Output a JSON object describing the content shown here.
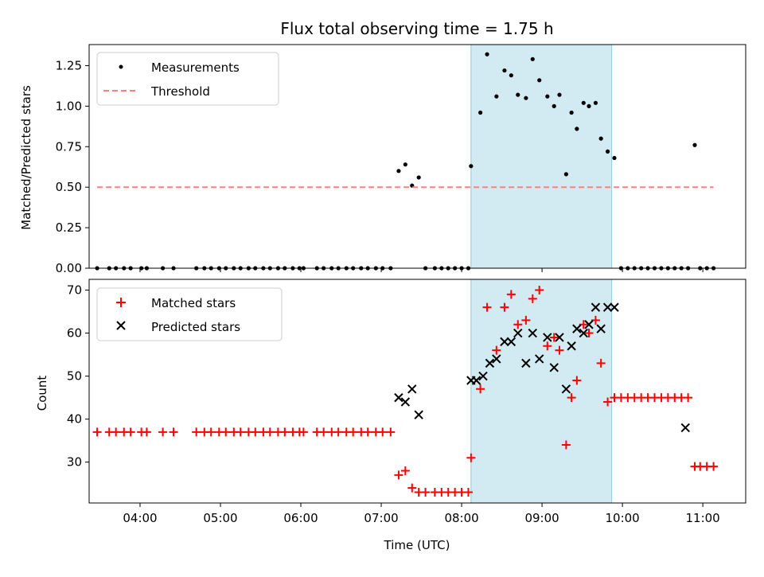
{
  "chart_data": [
    {
      "type": "scatter",
      "title": "Flux total observing time = 1.75 h",
      "xlabel": "",
      "ylabel": "Matched/Predicted stars",
      "xlim": [
        "03:22",
        "11:32"
      ],
      "ylim": [
        0,
        1.38
      ],
      "yticks": [
        "0.00",
        "0.25",
        "0.50",
        "0.75",
        "1.00",
        "1.25"
      ],
      "xticks": [
        "04:00",
        "05:00",
        "06:00",
        "07:00",
        "08:00",
        "09:00",
        "10:00",
        "11:00"
      ],
      "highlight_span": [
        "08:07",
        "09:52"
      ],
      "legend": {
        "position": "top-left",
        "entries": [
          "Measurements",
          "Threshold"
        ]
      },
      "series": [
        {
          "name": "Measurements",
          "marker": "dot",
          "color": "#000000",
          "x": [
            "03:28",
            "03:37",
            "03:42",
            "03:48",
            "03:53",
            "04:01",
            "04:05",
            "04:17",
            "04:25",
            "04:42",
            "04:48",
            "04:53",
            "04:59",
            "05:04",
            "05:10",
            "05:15",
            "05:21",
            "05:26",
            "05:32",
            "05:37",
            "05:43",
            "05:48",
            "05:54",
            "05:59",
            "06:02",
            "06:12",
            "06:17",
            "06:23",
            "06:28",
            "06:34",
            "06:39",
            "06:45",
            "06:50",
            "06:56",
            "07:01",
            "07:07",
            "07:13",
            "07:18",
            "07:23",
            "07:28",
            "07:33",
            "07:40",
            "07:45",
            "07:50",
            "07:55",
            "08:00",
            "08:05",
            "08:07",
            "08:14",
            "08:19",
            "08:26",
            "08:32",
            "08:37",
            "08:42",
            "08:48",
            "08:53",
            "08:58",
            "09:04",
            "09:09",
            "09:13",
            "09:18",
            "09:22",
            "09:26",
            "09:31",
            "09:35",
            "09:40",
            "09:44",
            "09:49",
            "09:54",
            "09:59",
            "10:04",
            "10:09",
            "10:14",
            "10:19",
            "10:24",
            "10:29",
            "10:34",
            "10:39",
            "10:44",
            "10:49",
            "10:54",
            "10:58",
            "11:03",
            "11:08"
          ],
          "y": [
            0,
            0,
            0,
            0,
            0,
            0,
            0,
            0,
            0,
            0,
            0,
            0,
            0,
            0,
            0,
            0,
            0,
            0,
            0,
            0,
            0,
            0,
            0,
            0,
            0,
            0,
            0,
            0,
            0,
            0,
            0,
            0,
            0,
            0,
            0,
            0,
            0.6,
            0.64,
            0.51,
            0.56,
            0,
            0,
            0,
            0,
            0,
            0,
            0,
            0.63,
            0.96,
            1.32,
            1.06,
            1.22,
            1.19,
            1.07,
            1.05,
            1.29,
            1.16,
            1.06,
            1.0,
            1.07,
            0.58,
            0.96,
            0.86,
            1.02,
            1.0,
            1.02,
            0.8,
            0.72,
            0.68,
            0,
            0,
            0,
            0,
            0,
            0,
            0,
            0,
            0,
            0,
            0,
            0.76,
            0,
            0,
            0
          ]
        },
        {
          "name": "Threshold",
          "style": "dashed",
          "color": "#ff7f7f",
          "x": [
            "03:28",
            "11:08"
          ],
          "y": [
            0.5,
            0.5
          ]
        }
      ]
    },
    {
      "type": "scatter",
      "title": "",
      "xlabel": "Time (UTC)",
      "ylabel": "Count",
      "xlim": [
        "03:22",
        "11:32"
      ],
      "ylim": [
        20.5,
        72.5
      ],
      "yticks": [
        "30",
        "40",
        "50",
        "60",
        "70"
      ],
      "xticks": [
        "04:00",
        "05:00",
        "06:00",
        "07:00",
        "08:00",
        "09:00",
        "10:00",
        "11:00"
      ],
      "highlight_span": [
        "08:07",
        "09:52"
      ],
      "legend": {
        "position": "top-left",
        "entries": [
          "Matched stars",
          "Predicted stars"
        ]
      },
      "series": [
        {
          "name": "Matched stars",
          "marker": "plus",
          "color": "#ff0000",
          "x": [
            "03:28",
            "03:37",
            "03:42",
            "03:48",
            "03:53",
            "04:01",
            "04:05",
            "04:17",
            "04:25",
            "04:42",
            "04:48",
            "04:53",
            "04:59",
            "05:04",
            "05:10",
            "05:15",
            "05:21",
            "05:26",
            "05:32",
            "05:37",
            "05:43",
            "05:48",
            "05:54",
            "05:59",
            "06:02",
            "06:12",
            "06:17",
            "06:23",
            "06:28",
            "06:34",
            "06:39",
            "06:45",
            "06:50",
            "06:56",
            "07:01",
            "07:07",
            "07:13",
            "07:18",
            "07:23",
            "07:28",
            "07:33",
            "07:40",
            "07:45",
            "07:50",
            "07:55",
            "08:00",
            "08:05",
            "08:07",
            "08:14",
            "08:19",
            "08:26",
            "08:32",
            "08:37",
            "08:42",
            "08:48",
            "08:53",
            "08:58",
            "09:04",
            "09:09",
            "09:13",
            "09:18",
            "09:22",
            "09:26",
            "09:31",
            "09:35",
            "09:40",
            "09:44",
            "09:49",
            "09:54",
            "09:59",
            "10:04",
            "10:09",
            "10:14",
            "10:19",
            "10:24",
            "10:29",
            "10:34",
            "10:39",
            "10:44",
            "10:49",
            "10:54",
            "10:58",
            "11:03",
            "11:08"
          ],
          "y": [
            37,
            37,
            37,
            37,
            37,
            37,
            37,
            37,
            37,
            37,
            37,
            37,
            37,
            37,
            37,
            37,
            37,
            37,
            37,
            37,
            37,
            37,
            37,
            37,
            37,
            37,
            37,
            37,
            37,
            37,
            37,
            37,
            37,
            37,
            37,
            37,
            27,
            28,
            24,
            23,
            23,
            23,
            23,
            23,
            23,
            23,
            23,
            31,
            47,
            66,
            56,
            66,
            69,
            62,
            63,
            68,
            70,
            57,
            59,
            56,
            34,
            45,
            49,
            62,
            60,
            63,
            53,
            44,
            45,
            45,
            45,
            45,
            45,
            45,
            45,
            45,
            45,
            45,
            45,
            45,
            29,
            29,
            29,
            29
          ]
        },
        {
          "name": "Predicted stars",
          "marker": "x",
          "color": "#000000",
          "x": [
            "07:13",
            "07:18",
            "07:23",
            "07:28",
            "08:07",
            "08:11",
            "08:16",
            "08:21",
            "08:26",
            "08:32",
            "08:37",
            "08:42",
            "08:48",
            "08:53",
            "08:58",
            "09:04",
            "09:09",
            "09:13",
            "09:18",
            "09:22",
            "09:26",
            "09:31",
            "09:35",
            "09:40",
            "09:44",
            "09:49",
            "09:54",
            "10:47"
          ],
          "y": [
            45,
            44,
            47,
            41,
            49,
            49,
            50,
            53,
            54,
            58,
            58,
            60,
            53,
            60,
            54,
            59,
            52,
            59,
            47,
            57,
            61,
            60,
            62,
            66,
            61,
            66,
            66,
            38
          ]
        }
      ]
    }
  ]
}
